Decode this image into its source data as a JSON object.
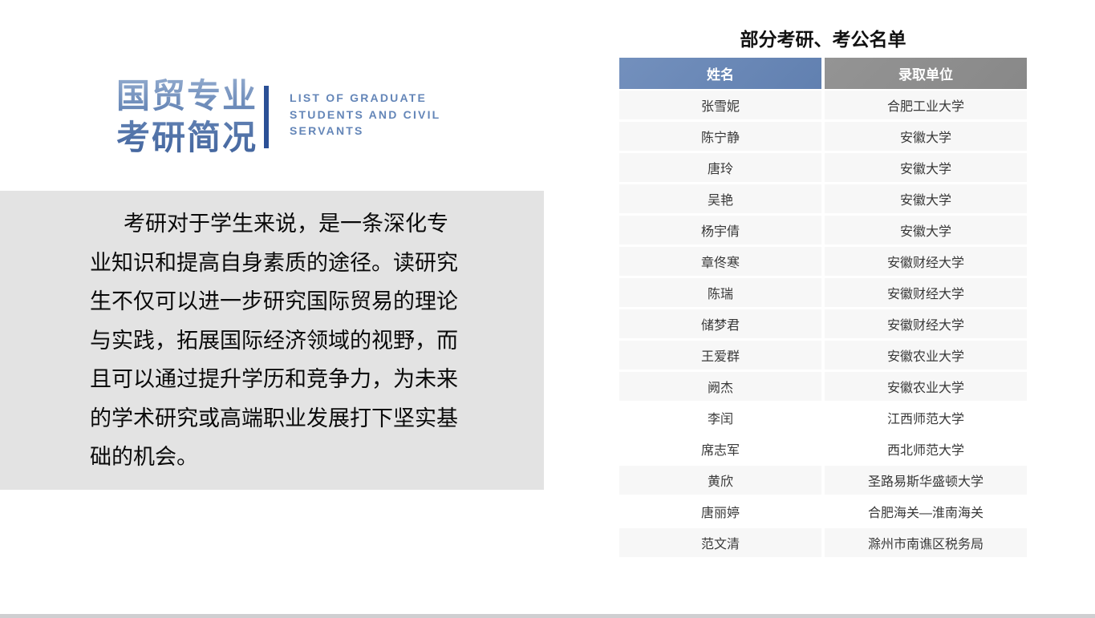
{
  "slide": {
    "main_title": "国贸专业\n考研简况",
    "subtitle_en": "LIST OF GRADUATE\nSTUDENTS AND CIVIL\nSERVANTS",
    "intro_paragraph": "考研对于学生来说，是一条深化专\n业知识和提高自身素质的途径。读研究\n生不仅可以进一步研究国际贸易的理论\n与实践，拓展国际经济领域的视野，而\n且可以通过提升学历和竞争力，为未来\n的学术研究或高端职业发展打下坚实基\n础的机会。",
    "table_title": "部分考研、考公名单",
    "table": {
      "headers": [
        "姓名",
        "录取单位"
      ],
      "rows": [
        {
          "name": "张雪妮",
          "unit": "合肥工业大学",
          "shaded": true
        },
        {
          "name": "陈宁静",
          "unit": "安徽大学",
          "shaded": true
        },
        {
          "name": "唐玲",
          "unit": "安徽大学",
          "shaded": true
        },
        {
          "name": "吴艳",
          "unit": "安徽大学",
          "shaded": true
        },
        {
          "name": "杨宇倩",
          "unit": "安徽大学",
          "shaded": true
        },
        {
          "name": "章佟寒",
          "unit": "安徽财经大学",
          "shaded": true
        },
        {
          "name": "陈瑞",
          "unit": "安徽财经大学",
          "shaded": true
        },
        {
          "name": "储梦君",
          "unit": "安徽财经大学",
          "shaded": true
        },
        {
          "name": "王爱群",
          "unit": "安徽农业大学",
          "shaded": true
        },
        {
          "name": "阙杰",
          "unit": "安徽农业大学",
          "shaded": true
        },
        {
          "name": "李闰",
          "unit": "江西师范大学",
          "shaded": false
        },
        {
          "name": "席志军",
          "unit": "西北师范大学",
          "shaded": false
        },
        {
          "name": "黄欣",
          "unit": "圣路易斯华盛顿大学",
          "shaded": true
        },
        {
          "name": "唐丽婷",
          "unit": "合肥海关—淮南海关",
          "shaded": false
        },
        {
          "name": "范文清",
          "unit": "滁州市南谯区税务局",
          "shaded": true
        }
      ]
    },
    "colors": {
      "title_gradient_top": "#93ABCE",
      "title_gradient_bottom": "#40629C",
      "divider_blue": "#2B5096",
      "subtitle_blue": "#6486B8",
      "panel_gray": "#E3E3E3",
      "header_blue": "#6A87B5",
      "header_gray": "#8C8C8C",
      "row_shaded": "#F7F7F7",
      "bottom_bar": "#CFCFD1"
    }
  }
}
